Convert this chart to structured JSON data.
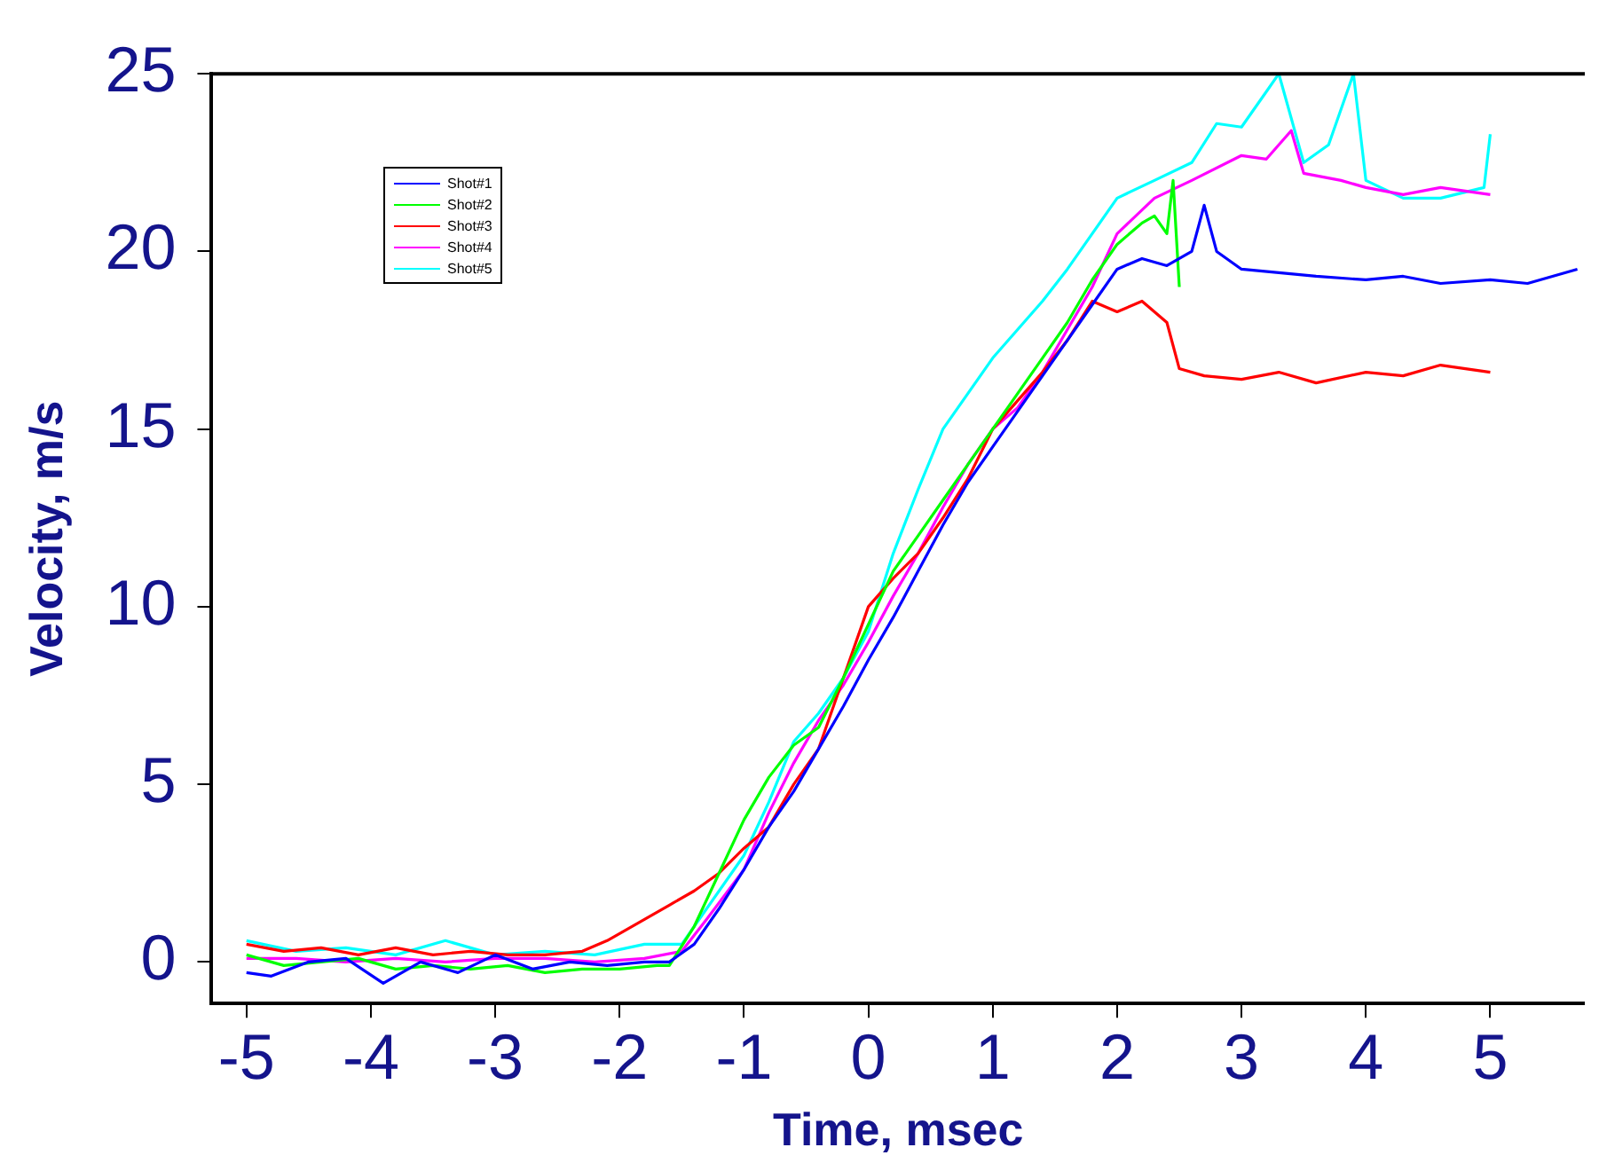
{
  "chart_data": {
    "type": "line",
    "xlabel": "Time, msec",
    "ylabel": "Velocity, m/s",
    "xlim": [
      -5.28,
      5.76
    ],
    "ylim": [
      -1.17,
      25
    ],
    "xticks": [
      -5,
      -4,
      -3,
      -2,
      -1,
      0,
      1,
      2,
      3,
      4,
      5
    ],
    "yticks": [
      0,
      5,
      10,
      15,
      20,
      25
    ],
    "grid": false,
    "legend": "top left",
    "marker": "none",
    "line_style": "solid",
    "series": [
      {
        "name": "Shot#1",
        "color": "#0000ff",
        "x": [
          -5,
          -4.8,
          -4.5,
          -4.2,
          -3.9,
          -3.6,
          -3.3,
          -3,
          -2.7,
          -2.4,
          -2.1,
          -1.8,
          -1.6,
          -1.4,
          -1.2,
          -1,
          -0.8,
          -0.6,
          -0.4,
          -0.2,
          0,
          0.2,
          0.4,
          0.6,
          0.8,
          1,
          1.2,
          1.4,
          1.6,
          1.8,
          2,
          2.2,
          2.4,
          2.6,
          2.7,
          2.8,
          3,
          3.3,
          3.6,
          4,
          4.3,
          4.6,
          5,
          5.3,
          5.7
        ],
        "values": [
          -0.3,
          -0.4,
          0,
          0.1,
          -0.6,
          0,
          -0.3,
          0.2,
          -0.2,
          0,
          -0.1,
          0,
          0,
          0.5,
          1.5,
          2.6,
          3.8,
          4.8,
          6,
          7.2,
          8.5,
          9.7,
          11,
          12.3,
          13.5,
          14.5,
          15.5,
          16.5,
          17.5,
          18.5,
          19.5,
          19.8,
          19.6,
          20,
          21.3,
          20,
          19.5,
          19.4,
          19.3,
          19.2,
          19.3,
          19.1,
          19.2,
          19.1,
          19.5
        ]
      },
      {
        "name": "Shot#2",
        "color": "#00ff00",
        "x": [
          -5,
          -4.7,
          -4.4,
          -4.1,
          -3.8,
          -3.5,
          -3.2,
          -2.9,
          -2.6,
          -2.3,
          -2,
          -1.7,
          -1.6,
          -1.4,
          -1.2,
          -1,
          -0.8,
          -0.6,
          -0.4,
          -0.2,
          0,
          0.2,
          0.4,
          0.6,
          0.8,
          1,
          1.2,
          1.4,
          1.6,
          1.8,
          2,
          2.2,
          2.3,
          2.4,
          2.45,
          2.5
        ],
        "values": [
          0.2,
          -0.1,
          0,
          0.1,
          -0.2,
          -0.1,
          -0.2,
          -0.1,
          -0.3,
          -0.2,
          -0.2,
          -0.1,
          -0.1,
          1,
          2.5,
          4,
          5.2,
          6.1,
          6.6,
          8,
          9.5,
          11,
          12,
          13,
          14,
          15,
          16,
          17,
          18,
          19.2,
          20.2,
          20.8,
          21,
          20.5,
          22,
          19
        ]
      },
      {
        "name": "Shot#3",
        "color": "#ff0000",
        "x": [
          -5,
          -4.7,
          -4.4,
          -4.1,
          -3.8,
          -3.5,
          -3.2,
          -2.9,
          -2.6,
          -2.3,
          -2.1,
          -2,
          -1.8,
          -1.6,
          -1.4,
          -1.2,
          -1,
          -0.8,
          -0.6,
          -0.4,
          -0.2,
          0,
          0.2,
          0.4,
          0.6,
          0.8,
          1,
          1.2,
          1.4,
          1.6,
          1.8,
          2,
          2.2,
          2.4,
          2.5,
          2.7,
          3,
          3.3,
          3.6,
          4,
          4.3,
          4.6,
          5
        ],
        "values": [
          0.5,
          0.3,
          0.4,
          0.2,
          0.4,
          0.2,
          0.3,
          0.2,
          0.2,
          0.3,
          0.6,
          0.8,
          1.2,
          1.6,
          2,
          2.5,
          3.2,
          3.8,
          5,
          6,
          8,
          10,
          10.8,
          11.5,
          12.5,
          13.6,
          15,
          15.8,
          16.6,
          17.5,
          18.6,
          18.3,
          18.6,
          18,
          16.7,
          16.5,
          16.4,
          16.6,
          16.3,
          16.6,
          16.5,
          16.8,
          16.6
        ]
      },
      {
        "name": "Shot#4",
        "color": "#ff00ff",
        "x": [
          -5,
          -4.6,
          -4.2,
          -3.8,
          -3.4,
          -3,
          -2.6,
          -2.2,
          -1.8,
          -1.5,
          -1.3,
          -1,
          -0.8,
          -0.6,
          -0.4,
          -0.2,
          0,
          0.2,
          0.4,
          0.6,
          0.8,
          1,
          1.2,
          1.4,
          1.6,
          1.8,
          2,
          2.3,
          2.6,
          3,
          3.2,
          3.4,
          3.5,
          3.8,
          4,
          4.3,
          4.6,
          5
        ],
        "values": [
          0.1,
          0.1,
          0,
          0.1,
          0,
          0.1,
          0.1,
          0,
          0.1,
          0.3,
          1.2,
          2.6,
          4.2,
          5.6,
          6.8,
          7.8,
          9,
          10.3,
          11.5,
          12.8,
          14,
          15,
          15.6,
          16.6,
          17.8,
          19,
          20.5,
          21.5,
          22,
          22.7,
          22.6,
          23.4,
          22.2,
          22,
          21.8,
          21.6,
          21.8,
          21.6
        ]
      },
      {
        "name": "Shot#5",
        "color": "#00ffff",
        "x": [
          -5,
          -4.6,
          -4.2,
          -3.8,
          -3.4,
          -3,
          -2.6,
          -2.2,
          -1.8,
          -1.5,
          -1.3,
          -1,
          -0.8,
          -0.6,
          -0.4,
          -0.2,
          0,
          0.2,
          0.4,
          0.6,
          0.8,
          1,
          1.2,
          1.4,
          1.6,
          1.8,
          2,
          2.3,
          2.6,
          2.8,
          3,
          3.2,
          3.3,
          3.5,
          3.7,
          3.9,
          4,
          4.3,
          4.6,
          4.95,
          5
        ],
        "values": [
          0.6,
          0.3,
          0.4,
          0.2,
          0.6,
          0.2,
          0.3,
          0.2,
          0.5,
          0.5,
          1.5,
          3,
          4.5,
          6.2,
          7,
          8,
          9.3,
          11.5,
          13.3,
          15,
          16,
          17,
          17.8,
          18.6,
          19.5,
          20.5,
          21.5,
          22,
          22.5,
          23.6,
          23.5,
          24.5,
          25,
          22.5,
          23,
          25,
          22,
          21.5,
          21.5,
          21.8,
          23.3
        ]
      }
    ]
  }
}
